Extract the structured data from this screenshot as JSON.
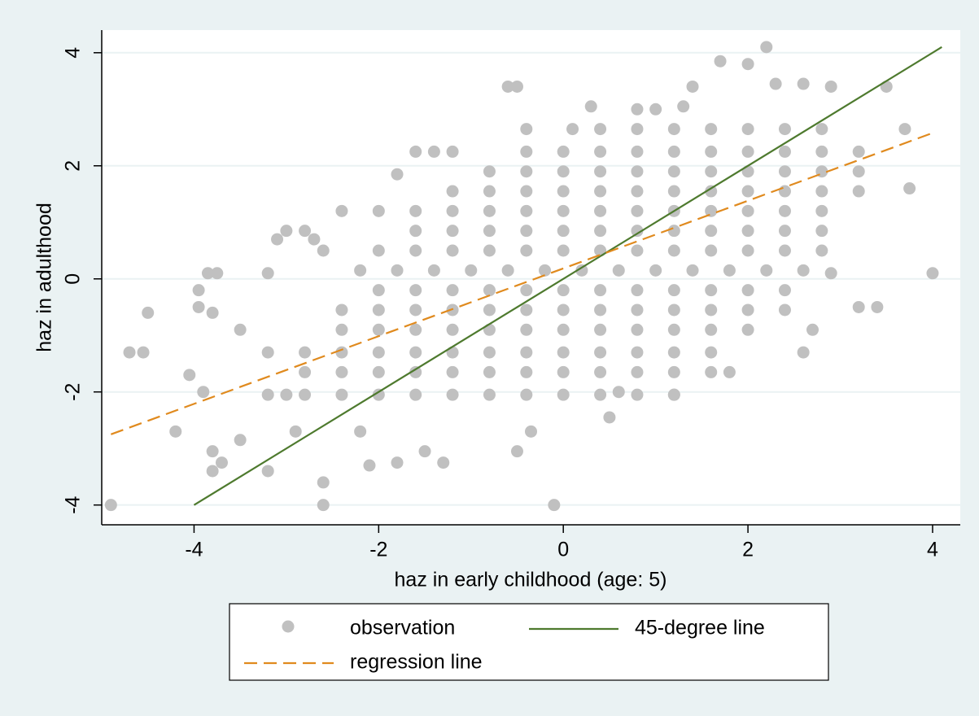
{
  "chart_data": {
    "type": "scatter",
    "xlabel": "haz in early childhood (age: 5)",
    "ylabel": "haz in adulthood",
    "xlim": [
      -5,
      4.3
    ],
    "ylim": [
      -4.35,
      4.4
    ],
    "xticks": [
      -4,
      -2,
      0,
      2,
      4
    ],
    "yticks": [
      -4,
      -2,
      0,
      2,
      4
    ],
    "grid": "y",
    "legend": "bottom",
    "series": [
      {
        "name": "observation",
        "color": "#c0c0c0",
        "mode": "markers",
        "x": [
          -3.2,
          -2.8,
          -2.4,
          -2.0,
          -1.6,
          -1.2,
          -0.8,
          -0.4,
          0,
          0.4,
          0.8,
          1.2,
          -2.8,
          -2.4,
          -2.0,
          -1.6,
          -1.2,
          -0.8,
          -0.4,
          0,
          0.4,
          0.8,
          1.2,
          1.6,
          -3.2,
          -2.8,
          -2.4,
          -2.0,
          -1.6,
          -1.2,
          -0.8,
          -0.4,
          0,
          0.4,
          0.8,
          1.2,
          1.6,
          -2.4,
          -2.0,
          -1.6,
          -1.2,
          -0.8,
          -0.4,
          0,
          0.4,
          0.8,
          1.2,
          1.6,
          2.0,
          -2.4,
          -2.0,
          -1.6,
          -1.2,
          -0.8,
          -0.4,
          0,
          0.4,
          0.8,
          1.2,
          1.6,
          2.0,
          2.4,
          -2.0,
          -1.6,
          -1.2,
          -0.8,
          -0.4,
          0,
          0.4,
          0.8,
          1.2,
          1.6,
          2.0,
          2.4,
          -2.2,
          -1.8,
          -1.4,
          -1.0,
          -0.6,
          -0.2,
          0.2,
          0.6,
          1.0,
          1.4,
          1.8,
          2.2,
          2.6,
          -2.0,
          -1.6,
          -1.2,
          -0.8,
          -0.4,
          0,
          0.4,
          0.8,
          1.2,
          1.6,
          2.0,
          2.4,
          2.8,
          -1.6,
          -1.2,
          -0.8,
          -0.4,
          0,
          0.4,
          0.8,
          1.2,
          1.6,
          2.0,
          2.4,
          2.8,
          -1.6,
          -1.2,
          -0.8,
          -0.4,
          0,
          0.4,
          0.8,
          1.2,
          1.6,
          2.0,
          2.4,
          2.8,
          -1.2,
          -0.8,
          -0.4,
          0,
          0.4,
          0.8,
          1.2,
          1.6,
          2.0,
          2.4,
          2.8,
          3.2,
          -0.8,
          -0.4,
          0,
          0.4,
          0.8,
          1.2,
          1.6,
          2.0,
          2.4,
          2.8,
          3.2,
          -0.4,
          0,
          0.4,
          0.8,
          1.2,
          1.6,
          2.0,
          2.4,
          2.8,
          3.2,
          0.4,
          0.8,
          1.2,
          1.6,
          2.0,
          2.4,
          2.8,
          -4.9,
          -4.7,
          -4.5,
          -4.55,
          -4.2,
          -4.05,
          -3.9,
          -3.95,
          -3.95,
          -3.85,
          -3.75,
          -3.8,
          -3.8,
          -3.8,
          -3.7,
          -3.5,
          -3.5,
          -3.2,
          -3.2,
          -3.1,
          -3.0,
          -2.8,
          -2.7,
          -2.6,
          -2.6,
          -2.6,
          -2.4,
          -2.0,
          -1.8,
          -1.6,
          -1.4,
          -1.2,
          -0.6,
          -0.5,
          -0.4,
          -0.1,
          0.1,
          0.3,
          0.5,
          0.6,
          0.8,
          1.0,
          1.3,
          1.4,
          1.7,
          1.8,
          2.0,
          2.2,
          2.3,
          2.6,
          2.6,
          2.7,
          2.9,
          3.2,
          3.4,
          3.5,
          3.7,
          3.75,
          4.0,
          2.9,
          -1.3,
          -1.5,
          -2.1,
          -1.8,
          -0.5,
          -0.35,
          -2.2,
          -2.9,
          -3.0,
          1.2
        ],
        "values": [
          -2.05,
          -2.05,
          -2.05,
          -2.05,
          -2.05,
          -2.05,
          -2.05,
          -2.05,
          -2.05,
          -2.05,
          -2.05,
          -2.05,
          -1.65,
          -1.65,
          -1.65,
          -1.65,
          -1.65,
          -1.65,
          -1.65,
          -1.65,
          -1.65,
          -1.65,
          -1.65,
          -1.65,
          -1.3,
          -1.3,
          -1.3,
          -1.3,
          -1.3,
          -1.3,
          -1.3,
          -1.3,
          -1.3,
          -1.3,
          -1.3,
          -1.3,
          -1.3,
          -0.9,
          -0.9,
          -0.9,
          -0.9,
          -0.9,
          -0.9,
          -0.9,
          -0.9,
          -0.9,
          -0.9,
          -0.9,
          -0.9,
          -0.55,
          -0.55,
          -0.55,
          -0.55,
          -0.55,
          -0.55,
          -0.55,
          -0.55,
          -0.55,
          -0.55,
          -0.55,
          -0.55,
          -0.55,
          -0.2,
          -0.2,
          -0.2,
          -0.2,
          -0.2,
          -0.2,
          -0.2,
          -0.2,
          -0.2,
          -0.2,
          -0.2,
          -0.2,
          0.15,
          0.15,
          0.15,
          0.15,
          0.15,
          0.15,
          0.15,
          0.15,
          0.15,
          0.15,
          0.15,
          0.15,
          0.15,
          0.5,
          0.5,
          0.5,
          0.5,
          0.5,
          0.5,
          0.5,
          0.5,
          0.5,
          0.5,
          0.5,
          0.5,
          0.5,
          0.85,
          0.85,
          0.85,
          0.85,
          0.85,
          0.85,
          0.85,
          0.85,
          0.85,
          0.85,
          0.85,
          0.85,
          1.2,
          1.2,
          1.2,
          1.2,
          1.2,
          1.2,
          1.2,
          1.2,
          1.2,
          1.2,
          1.2,
          1.2,
          1.55,
          1.55,
          1.55,
          1.55,
          1.55,
          1.55,
          1.55,
          1.55,
          1.55,
          1.55,
          1.55,
          1.55,
          1.9,
          1.9,
          1.9,
          1.9,
          1.9,
          1.9,
          1.9,
          1.9,
          1.9,
          1.9,
          1.9,
          2.25,
          2.25,
          2.25,
          2.25,
          2.25,
          2.25,
          2.25,
          2.25,
          2.25,
          2.25,
          2.65,
          2.65,
          2.65,
          2.65,
          2.65,
          2.65,
          2.65,
          -4,
          -1.3,
          -0.6,
          -1.3,
          -2.7,
          -1.7,
          -2.0,
          -0.5,
          -0.2,
          0.1,
          0.1,
          -0.6,
          -3.05,
          -3.4,
          -3.25,
          -2.85,
          -0.9,
          -3.4,
          0.1,
          0.7,
          0.85,
          0.85,
          0.7,
          0.5,
          -3.6,
          -4.0,
          1.2,
          1.2,
          1.85,
          2.25,
          2.25,
          2.25,
          3.4,
          3.4,
          2.65,
          -4.0,
          2.65,
          3.05,
          -2.45,
          -2.0,
          3.0,
          3.0,
          3.05,
          3.4,
          3.85,
          -1.65,
          3.8,
          4.1,
          3.45,
          3.45,
          -1.3,
          -0.9,
          3.4,
          -0.5,
          -0.5,
          3.4,
          2.65,
          1.6,
          0.1,
          0.1,
          -3.25,
          -3.05,
          -3.3,
          -3.25,
          -3.05,
          -2.7,
          -2.7,
          -2.7,
          -2.05,
          -2.05
        ]
      },
      {
        "name": "45-degree line",
        "color": "#4e7a2e",
        "mode": "line",
        "x": [
          -4,
          4.1
        ],
        "values": [
          -4,
          4.1
        ]
      },
      {
        "name": "regression line",
        "color": "#e08a1e",
        "mode": "line",
        "dash": true,
        "x": [
          -4.9,
          4
        ],
        "values": [
          -2.75,
          2.58
        ]
      }
    ]
  }
}
